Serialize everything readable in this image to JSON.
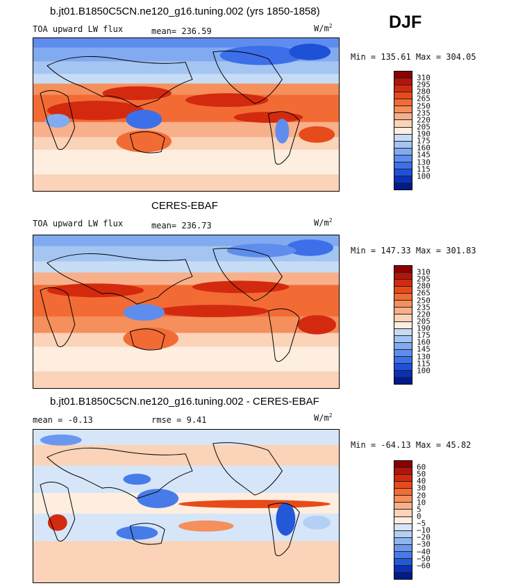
{
  "season": "DJF",
  "colors": {
    "abs_scale": [
      "#8b0000",
      "#b2150b",
      "#d32a0f",
      "#e74b1a",
      "#f26b35",
      "#f58f5c",
      "#f8b08a",
      "#fad3b8",
      "#fdeee0",
      "#c6dcf5",
      "#a4c5f2",
      "#81aaf0",
      "#5f8ded",
      "#3c6fe8",
      "#1f50d8",
      "#0b30b8",
      "#001b8a"
    ],
    "diff_scale": [
      "#8b0000",
      "#b2150b",
      "#d32a0f",
      "#e74b1a",
      "#f26b35",
      "#f58f5c",
      "#f8b08a",
      "#fad3b8",
      "#fdeee0",
      "#d6e6f8",
      "#b3cff4",
      "#8fb5f1",
      "#6b98ee",
      "#477be8",
      "#2358d8",
      "#0b30b8",
      "#001b8a"
    ]
  },
  "panels": [
    {
      "title": "b.jt01.B1850C5CN.ne120_g16.tuning.002 (yrs 1850-1858)",
      "variable": "TOA upward LW flux",
      "mean_label": "mean=",
      "mean_value": "236.59",
      "units_base": "W/m",
      "units_exp": "2",
      "minmax": "Min = 135.61 Max = 304.05",
      "scale": "abs_scale",
      "levels": [
        "310",
        "295",
        "280",
        "265",
        "250",
        "235",
        "220",
        "205",
        "190",
        "175",
        "160",
        "145",
        "130",
        "115",
        "100"
      ]
    },
    {
      "title": "CERES-EBAF",
      "variable": "TOA upward LW flux",
      "mean_label": "mean=",
      "mean_value": "236.73",
      "units_base": "W/m",
      "units_exp": "2",
      "minmax": "Min = 147.33 Max = 301.83",
      "scale": "abs_scale",
      "levels": [
        "310",
        "295",
        "280",
        "265",
        "250",
        "235",
        "220",
        "205",
        "190",
        "175",
        "160",
        "145",
        "130",
        "115",
        "100"
      ]
    },
    {
      "title": "b.jt01.B1850C5CN.ne120_g16.tuning.002 - CERES-EBAF",
      "mean_label": "mean =",
      "mean_value": "-0.13",
      "rmse_label": "rmse =",
      "rmse_value": "9.41",
      "units_base": "W/m",
      "units_exp": "2",
      "minmax": "Min = -64.13 Max =  45.82",
      "scale": "diff_scale",
      "levels": [
        "60",
        "50",
        "40",
        "30",
        "20",
        "10",
        "5",
        "0",
        "−5",
        "−10",
        "−20",
        "−30",
        "−40",
        "−50",
        "−60"
      ]
    }
  ]
}
